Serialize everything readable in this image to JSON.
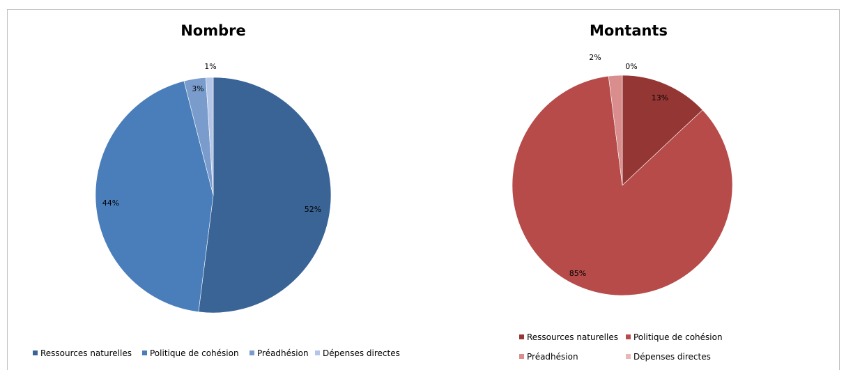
{
  "chart_data": [
    {
      "type": "pie",
      "title": "Nombre",
      "categories": [
        "Ressources naturelles",
        "Politique de cohésion",
        "Préadhésion",
        "Dépenses directes"
      ],
      "values": [
        52,
        44,
        3,
        1
      ],
      "labels": [
        "52%",
        "44%",
        "3%",
        "1%"
      ],
      "colors": [
        "#3A6496",
        "#4A7EBB",
        "#7A9CCD",
        "#B4C6E7"
      ],
      "legend": "bottom"
    },
    {
      "type": "pie",
      "title": "Montants",
      "categories": [
        "Ressources naturelles",
        "Politique de cohésion",
        "Préadhésion",
        "Dépenses directes"
      ],
      "values": [
        13,
        85,
        2,
        0
      ],
      "labels": [
        "13%",
        "85%",
        "2%",
        "0%"
      ],
      "colors": [
        "#943634",
        "#B64B49",
        "#D98D8C",
        "#E6B9B8"
      ],
      "legend": "bottom"
    }
  ]
}
